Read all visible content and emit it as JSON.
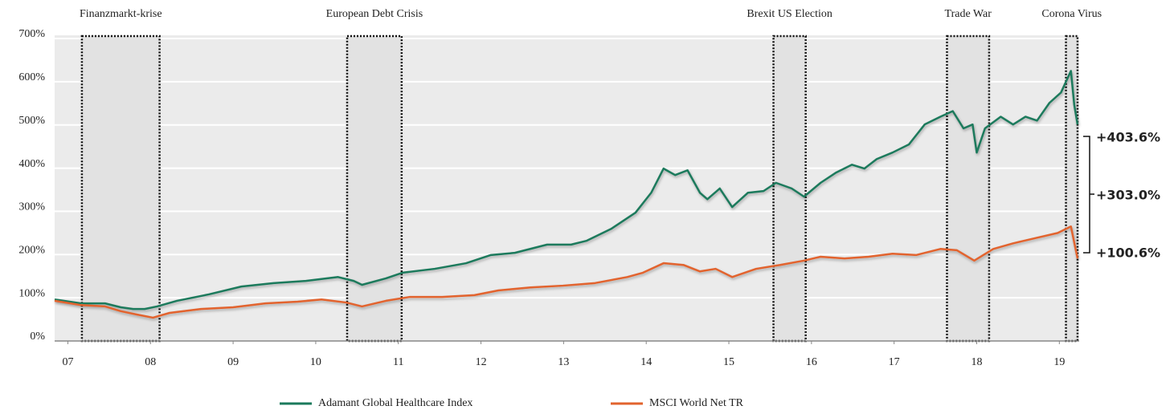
{
  "chart_data": {
    "type": "line",
    "xlim": [
      2006.84,
      2019.24
    ],
    "xticks": [
      {
        "value": 2007,
        "label": "07"
      },
      {
        "value": 2008,
        "label": "08"
      },
      {
        "value": 2009,
        "label": "09"
      },
      {
        "value": 2010,
        "label": "10"
      },
      {
        "value": 2011,
        "label": "11"
      },
      {
        "value": 2012,
        "label": "12"
      },
      {
        "value": 2013,
        "label": "13"
      },
      {
        "value": 2014,
        "label": "14"
      },
      {
        "value": 2015,
        "label": "15"
      },
      {
        "value": 2016,
        "label": "16"
      },
      {
        "value": 2017,
        "label": "17"
      },
      {
        "value": 2018,
        "label": "18"
      },
      {
        "value": 2019,
        "label": "19"
      }
    ],
    "ylim": [
      0,
      700
    ],
    "yticks": [
      {
        "value": 0,
        "label": "0%"
      },
      {
        "value": 100,
        "label": "100%"
      },
      {
        "value": 200,
        "label": "200%"
      },
      {
        "value": 300,
        "label": "300%"
      },
      {
        "value": 400,
        "label": "400%"
      },
      {
        "value": 500,
        "label": "500%"
      },
      {
        "value": 600,
        "label": "600%"
      },
      {
        "value": 700,
        "label": "700%"
      }
    ],
    "grid": true,
    "legend": "bottom",
    "series": [
      {
        "name": "Adamant Global Healthcare Index",
        "color": "#1b7a5c",
        "x": [
          2006.84,
          2007.16,
          2007.45,
          2007.64,
          2007.79,
          2007.93,
          2008.08,
          2008.32,
          2008.71,
          2009.1,
          2009.49,
          2009.88,
          2010.27,
          2010.46,
          2010.56,
          2010.85,
          2011.05,
          2011.44,
          2011.82,
          2012.12,
          2012.41,
          2012.8,
          2013.09,
          2013.28,
          2013.58,
          2013.87,
          2014.06,
          2014.21,
          2014.35,
          2014.5,
          2014.65,
          2014.74,
          2014.89,
          2015.04,
          2015.23,
          2015.42,
          2015.57,
          2015.76,
          2015.91,
          2016.11,
          2016.3,
          2016.49,
          2016.64,
          2016.79,
          2016.98,
          2017.18,
          2017.37,
          2017.56,
          2017.71,
          2017.84,
          2017.95,
          2018.0,
          2018.1,
          2018.29,
          2018.44,
          2018.59,
          2018.73,
          2018.88,
          2019.02,
          2019.14,
          2019.18,
          2019.22
        ],
        "values": [
          96,
          87,
          87,
          78,
          74,
          74,
          80,
          93,
          108,
          126,
          134,
          139,
          148,
          139,
          130,
          145,
          158,
          167,
          180,
          199,
          204,
          223,
          223,
          232,
          260,
          297,
          343,
          399,
          384,
          395,
          343,
          328,
          353,
          310,
          343,
          347,
          366,
          353,
          334,
          366,
          390,
          408,
          399,
          421,
          436,
          455,
          501,
          519,
          532,
          492,
          501,
          436,
          492,
          519,
          501,
          519,
          510,
          551,
          575,
          625,
          547,
          501
        ]
      },
      {
        "name": "MSCI World Net TR",
        "color": "#e2632e",
        "x": [
          2006.84,
          2007.16,
          2007.45,
          2007.64,
          2007.84,
          2008.03,
          2008.23,
          2008.61,
          2009.0,
          2009.39,
          2009.78,
          2010.07,
          2010.37,
          2010.56,
          2010.85,
          2011.14,
          2011.53,
          2011.92,
          2012.21,
          2012.6,
          2012.99,
          2013.38,
          2013.77,
          2013.96,
          2014.21,
          2014.45,
          2014.65,
          2014.84,
          2015.04,
          2015.33,
          2015.62,
          2015.91,
          2016.11,
          2016.4,
          2016.69,
          2016.98,
          2017.27,
          2017.56,
          2017.76,
          2017.97,
          2018.2,
          2018.44,
          2018.73,
          2018.98,
          2019.14,
          2019.22
        ],
        "values": [
          93,
          83,
          80,
          69,
          61,
          54,
          65,
          74,
          78,
          87,
          91,
          96,
          89,
          80,
          93,
          102,
          102,
          106,
          117,
          124,
          128,
          134,
          148,
          158,
          180,
          176,
          161,
          167,
          148,
          167,
          176,
          186,
          195,
          191,
          195,
          202,
          199,
          213,
          210,
          186,
          213,
          226,
          239,
          250,
          265,
          191
        ]
      }
    ],
    "events": [
      {
        "label": "Finanzmarkt-krise",
        "start": 2007.17,
        "end": 2008.11
      },
      {
        "label": "European Debt Crisis",
        "start": 2010.38,
        "end": 2011.04
      },
      {
        "label": "Brexit US Election",
        "start": 2015.54,
        "end": 2015.93
      },
      {
        "label": "Trade War",
        "start": 2017.64,
        "end": 2018.15
      },
      {
        "label": "Corona Virus",
        "start": 2019.08,
        "end": 2019.22
      }
    ],
    "annotations": [
      {
        "text": "+403.6%",
        "color": "#1b7a5c"
      },
      {
        "text": "+303.0%",
        "color": "#111111"
      },
      {
        "text": "+100.6%",
        "color": "#e2632e"
      }
    ]
  }
}
